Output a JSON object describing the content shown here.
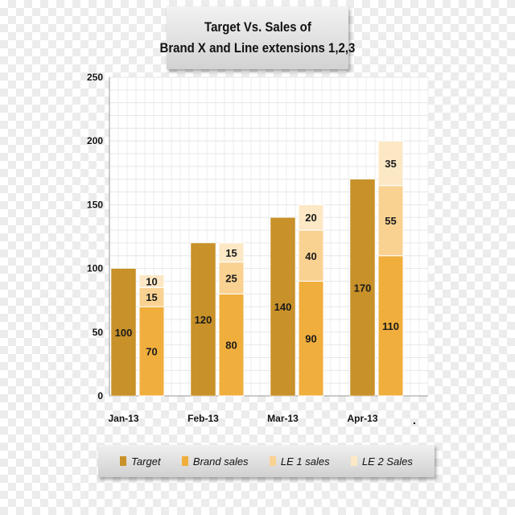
{
  "chart_data": {
    "type": "bar",
    "title_lines": [
      "Target Vs. Sales of",
      "Brand X  and Line extensions 1,2,3"
    ],
    "categories": [
      "Jan-13",
      "Feb-13",
      "Mar-13",
      "Apr-13"
    ],
    "trailing_label": ".",
    "ylim": [
      0,
      250
    ],
    "yticks": [
      0,
      50,
      100,
      150,
      200,
      250
    ],
    "grid": true,
    "legend_position": "bottom",
    "target": {
      "name": "Target",
      "color": "#c8912a",
      "values": [
        100,
        120,
        140,
        170
      ],
      "labels": [
        "100",
        "120",
        "140",
        "170"
      ]
    },
    "stack": [
      {
        "name": "Brand sales",
        "color": "#f0ae3c",
        "values": [
          70,
          80,
          90,
          110
        ],
        "labels": [
          "70",
          "80",
          "90",
          "110"
        ]
      },
      {
        "name": "LE 1 sales",
        "color": "#f9d292",
        "values": [
          15,
          25,
          40,
          55
        ],
        "labels": [
          "15",
          "25",
          "40",
          "55"
        ]
      },
      {
        "name": "LE 2 Sales",
        "color": "#fce8c5",
        "values": [
          10,
          15,
          20,
          35
        ],
        "labels": [
          "10",
          "15",
          "20",
          "35"
        ]
      }
    ]
  }
}
